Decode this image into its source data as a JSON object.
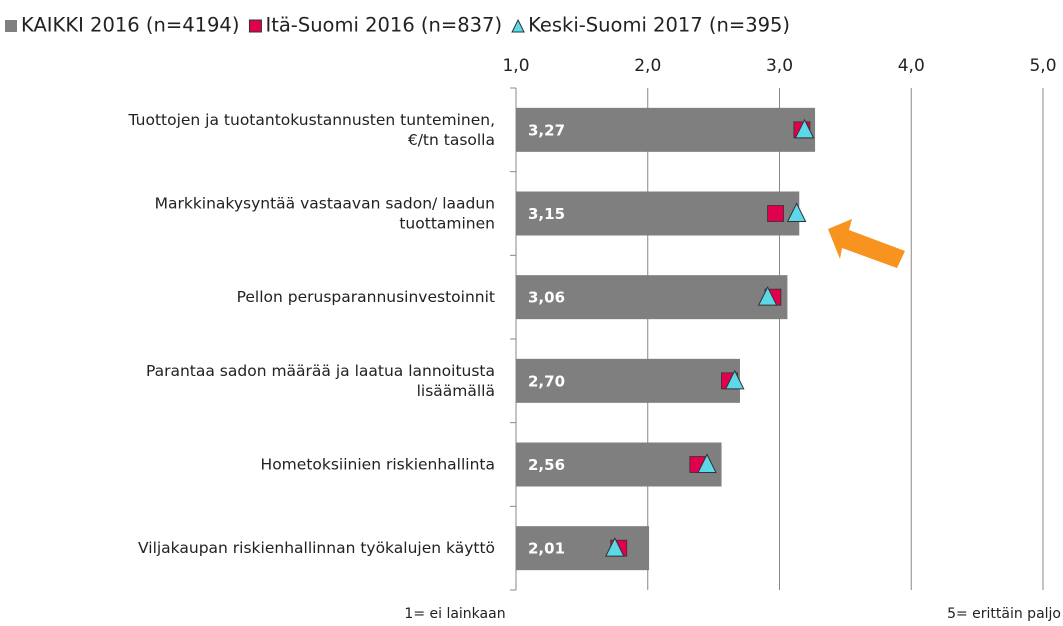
{
  "chart_data": {
    "type": "bar",
    "orientation": "horizontal",
    "categories": [
      "Tuottojen ja tuotantokustannusten tunteminen,\n€/tn tasolla",
      "Markkinakysyntää vastaavan sadon/ laadun\ntuottaminen",
      "Pellon perusparannusinvestoinnit",
      "Parantaa sadon määrää ja laatua lannoitusta\nlisäämällä",
      "Hometoksiinien riskienhallinta",
      "Viljakaupan riskienhallinnan työkalujen käyttö"
    ],
    "series": [
      {
        "name": "KAIKKI 2016 (n=4194)",
        "color": "#7f7f7f",
        "marker": "bar",
        "values": [
          3.27,
          3.15,
          3.06,
          2.7,
          2.56,
          2.01
        ],
        "value_labels": [
          "3,27",
          "3,15",
          "3,06",
          "2,70",
          "2,56",
          "2,01"
        ]
      },
      {
        "name": "Itä-Suomi 2016 (n=837)",
        "color": "#e0004d",
        "marker": "square",
        "values": [
          3.17,
          2.97,
          2.95,
          2.62,
          2.38,
          1.78
        ]
      },
      {
        "name": "Keski-Suomi 2017 (n=395)",
        "color": "#5cd8e8",
        "marker": "triangle",
        "values": [
          3.19,
          3.13,
          2.91,
          2.66,
          2.45,
          1.75
        ]
      }
    ],
    "xlim": [
      1,
      5
    ],
    "xticks": [
      {
        "value": 1,
        "label": "1,0"
      },
      {
        "value": 2,
        "label": "2,0"
      },
      {
        "value": 3,
        "label": "3,0"
      },
      {
        "value": 4,
        "label": "4,0"
      },
      {
        "value": 5,
        "label": "5,0"
      }
    ],
    "grid": true,
    "x_min_label": "1= ei lainkaan",
    "x_max_label": "5= erittäin paljo"
  }
}
